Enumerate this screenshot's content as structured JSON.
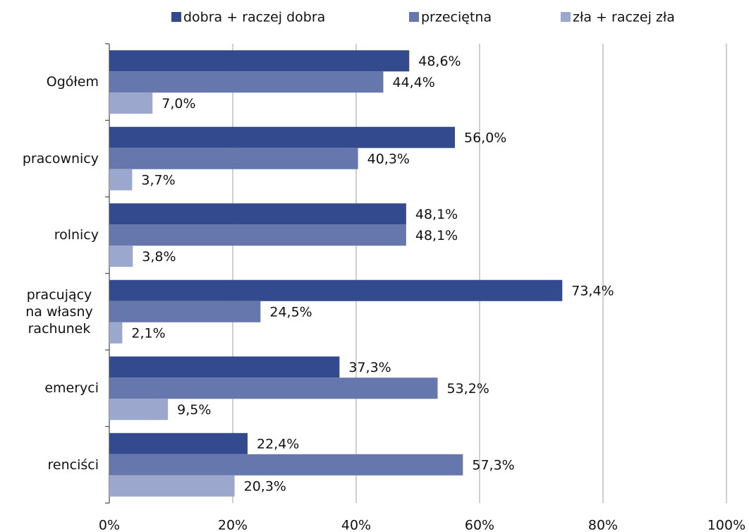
{
  "chart_data": {
    "type": "hbar",
    "categories": [
      "Ogółem",
      "pracownicy",
      "rolnicy",
      "pracujący na własny rachunek",
      "emeryci",
      "renciści"
    ],
    "series": [
      {
        "name": "dobra + raczej dobra",
        "color": "#334a8f",
        "values": [
          48.6,
          56.0,
          48.1,
          73.4,
          37.3,
          22.4
        ],
        "value_labels": [
          "48,6%",
          "56,0%",
          "48,1%",
          "73,4%",
          "37,3%",
          "22,4%"
        ]
      },
      {
        "name": "przeciętna",
        "color": "#6677ad",
        "values": [
          44.4,
          40.3,
          48.1,
          24.5,
          53.2,
          57.3
        ],
        "value_labels": [
          "44,4%",
          "40,3%",
          "48,1%",
          "24,5%",
          "53,2%",
          "57,3%"
        ]
      },
      {
        "name": "zła + raczej zła",
        "color": "#9ba7cc",
        "values": [
          7.0,
          3.7,
          3.8,
          2.1,
          9.5,
          20.3
        ],
        "value_labels": [
          "7,0%",
          "3,7%",
          "3,8%",
          "2,1%",
          "9,5%",
          "20,3%"
        ]
      }
    ],
    "xlim": [
      0,
      100
    ],
    "xticks": [
      {
        "value": 0,
        "label": "0%"
      },
      {
        "value": 20,
        "label": "20%"
      },
      {
        "value": 40,
        "label": "40%"
      },
      {
        "value": 60,
        "label": "60%"
      },
      {
        "value": 80,
        "label": "80%"
      },
      {
        "value": 100,
        "label": "100%"
      }
    ],
    "grid": true,
    "legend": "top"
  }
}
